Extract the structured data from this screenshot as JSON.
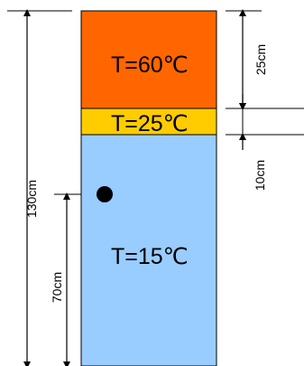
{
  "diagram": {
    "layers": [
      {
        "id": "hot",
        "label": "T=60℃",
        "color": "#ff6600"
      },
      {
        "id": "middle",
        "label": "T=25℃",
        "color": "#ffcc00"
      },
      {
        "id": "cold",
        "label": "T=15℃",
        "color": "#99ccff"
      }
    ],
    "dimensions": {
      "total_height": "130cm",
      "probe_height": "70cm",
      "hot_layer": "25cm",
      "middle_layer": "10cm"
    }
  }
}
